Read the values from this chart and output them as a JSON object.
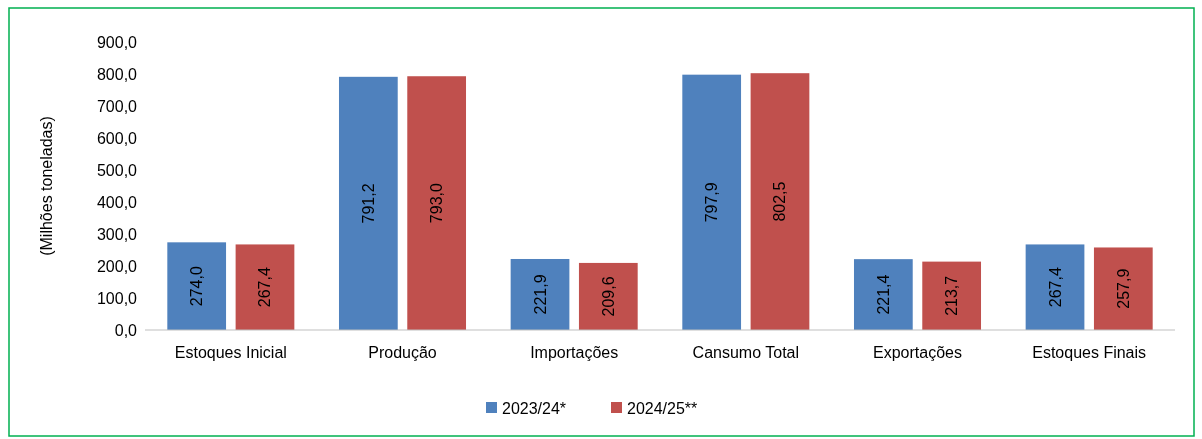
{
  "chart_data": {
    "type": "bar",
    "ylabel": "(Milhões toneladas)",
    "categories": [
      "Estoques Inicial",
      "Produção",
      "Importações",
      "Cansumo Total",
      "Exportações",
      "Estoques Finais"
    ],
    "series": [
      {
        "name": "2023/24*",
        "color": "#4f81bd",
        "values": [
          274.0,
          791.2,
          221.9,
          797.9,
          221.4,
          267.4
        ],
        "value_labels": [
          "274,0",
          "791,2",
          "221,9",
          "797,9",
          "221,4",
          "267,4"
        ]
      },
      {
        "name": "2024/25**",
        "color": "#c0504d",
        "values": [
          267.4,
          793.0,
          209.6,
          802.5,
          213.7,
          257.9
        ],
        "value_labels": [
          "267,4",
          "793,0",
          "209,6",
          "802,5",
          "213,7",
          "257,9"
        ]
      }
    ],
    "ylim": [
      0,
      900
    ],
    "yticks": [
      {
        "value": 0,
        "label": "0,0"
      },
      {
        "value": 100,
        "label": "100,0"
      },
      {
        "value": 200,
        "label": "200,0"
      },
      {
        "value": 300,
        "label": "300,0"
      },
      {
        "value": 400,
        "label": "400,0"
      },
      {
        "value": 500,
        "label": "500,0"
      },
      {
        "value": 600,
        "label": "600,0"
      },
      {
        "value": 700,
        "label": "700,0"
      },
      {
        "value": 800,
        "label": "800,0"
      },
      {
        "value": 900,
        "label": "900,0"
      }
    ],
    "grid": false,
    "legend": "bottom"
  }
}
